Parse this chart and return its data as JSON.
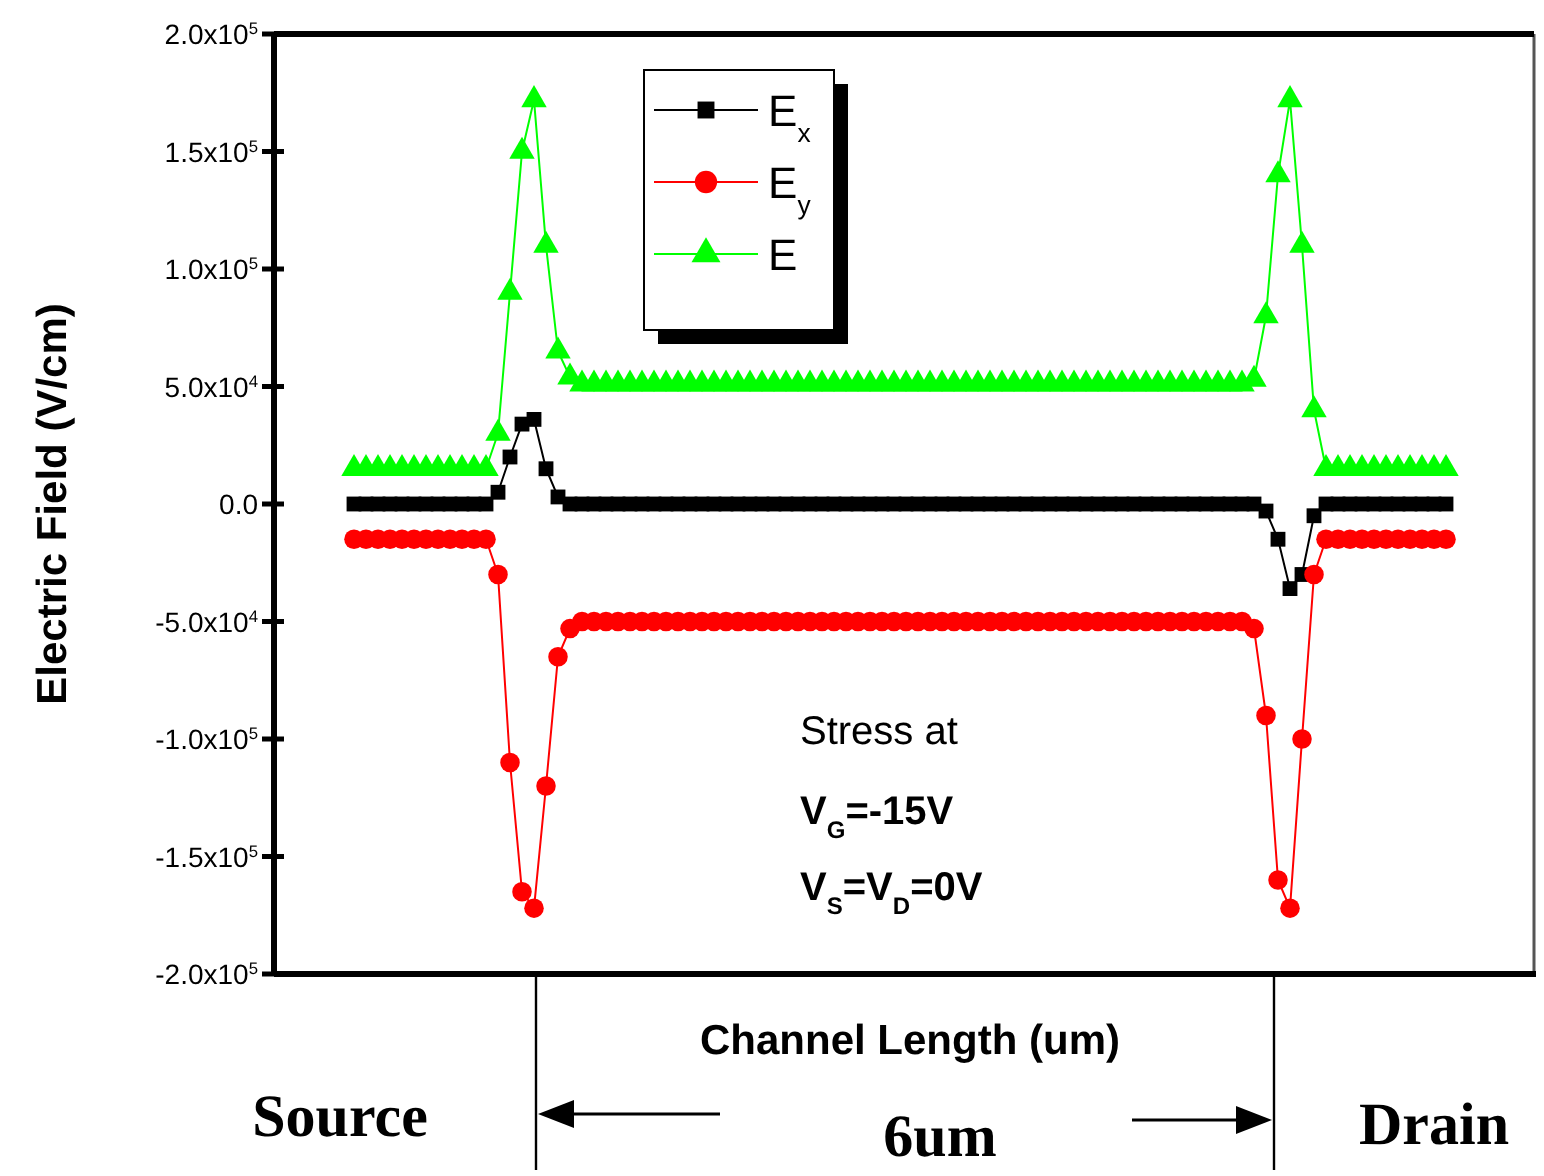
{
  "chart_data": {
    "type": "line",
    "xlabel": "Channel Length (um)",
    "ylabel": "Electric Field (V/cm)",
    "categories": [
      null,
      null,
      null,
      null,
      null,
      null,
      null,
      null,
      null,
      null,
      null,
      null,
      null,
      null,
      null,
      null,
      null,
      null,
      null,
      null,
      null,
      null,
      null,
      null,
      null,
      null,
      null,
      null,
      null,
      null,
      null,
      null,
      null,
      null,
      null,
      null,
      null,
      null,
      null,
      null,
      null,
      null,
      null,
      null,
      null,
      null,
      null,
      null,
      null,
      null,
      null,
      null,
      null,
      null,
      null,
      null,
      null,
      null,
      null,
      null,
      null,
      null,
      null,
      null,
      null,
      null,
      null,
      null,
      null,
      null,
      null,
      null,
      null,
      null,
      null,
      null,
      null,
      null,
      null,
      null,
      null,
      null,
      null,
      null,
      null,
      null,
      null,
      null,
      null,
      null,
      null,
      null
    ],
    "series": [
      {
        "name": "E$_{x}$",
        "color": "#000000",
        "marker": "square",
        "values": [
          0,
          0,
          0,
          0,
          0,
          0,
          0,
          0,
          0,
          0,
          0,
          0,
          5000,
          20000,
          34000,
          36000,
          15000,
          3000,
          0,
          0,
          0,
          0,
          0,
          0,
          0,
          0,
          0,
          0,
          0,
          0,
          0,
          0,
          0,
          0,
          0,
          0,
          0,
          0,
          0,
          0,
          0,
          0,
          0,
          0,
          0,
          0,
          0,
          0,
          0,
          0,
          0,
          0,
          0,
          0,
          0,
          0,
          0,
          0,
          0,
          0,
          0,
          0,
          0,
          0,
          0,
          0,
          0,
          0,
          0,
          0,
          0,
          0,
          0,
          0,
          0,
          0,
          -3000,
          -15000,
          -36000,
          -30000,
          -5000,
          0,
          0,
          0,
          0,
          0,
          0,
          0,
          0,
          0,
          0,
          0
        ]
      },
      {
        "name": "E$_{y}$",
        "color": "#ff0000",
        "marker": "circle",
        "values": [
          -15000,
          -15000,
          -15000,
          -15000,
          -15000,
          -15000,
          -15000,
          -15000,
          -15000,
          -15000,
          -15000,
          -15000,
          -30000,
          -110000,
          -165000,
          -172000,
          -120000,
          -65000,
          -53000,
          -50000,
          -50000,
          -50000,
          -50000,
          -50000,
          -50000,
          -50000,
          -50000,
          -50000,
          -50000,
          -50000,
          -50000,
          -50000,
          -50000,
          -50000,
          -50000,
          -50000,
          -50000,
          -50000,
          -50000,
          -50000,
          -50000,
          -50000,
          -50000,
          -50000,
          -50000,
          -50000,
          -50000,
          -50000,
          -50000,
          -50000,
          -50000,
          -50000,
          -50000,
          -50000,
          -50000,
          -50000,
          -50000,
          -50000,
          -50000,
          -50000,
          -50000,
          -50000,
          -50000,
          -50000,
          -50000,
          -50000,
          -50000,
          -50000,
          -50000,
          -50000,
          -50000,
          -50000,
          -50000,
          -50000,
          -50000,
          -53000,
          -90000,
          -160000,
          -172000,
          -100000,
          -30000,
          -15000,
          -15000,
          -15000,
          -15000,
          -15000,
          -15000,
          -15000,
          -15000,
          -15000,
          -15000,
          -15000
        ]
      },
      {
        "name": "E",
        "color": "#00ff00",
        "marker": "triangle",
        "values": [
          15000,
          15000,
          15000,
          15000,
          15000,
          15000,
          15000,
          15000,
          15000,
          15000,
          15000,
          15000,
          30000,
          90000,
          150000,
          172000,
          110000,
          65000,
          54000,
          51000,
          51000,
          51000,
          51000,
          51000,
          51000,
          51000,
          51000,
          51000,
          51000,
          51000,
          51000,
          51000,
          51000,
          51000,
          51000,
          51000,
          51000,
          51000,
          51000,
          51000,
          51000,
          51000,
          51000,
          51000,
          51000,
          51000,
          51000,
          51000,
          51000,
          51000,
          51000,
          51000,
          51000,
          51000,
          51000,
          51000,
          51000,
          51000,
          51000,
          51000,
          51000,
          51000,
          51000,
          51000,
          51000,
          51000,
          51000,
          51000,
          51000,
          51000,
          51000,
          51000,
          51000,
          51000,
          51000,
          53000,
          80000,
          140000,
          172000,
          110000,
          40000,
          15000,
          15000,
          15000,
          15000,
          15000,
          15000,
          15000,
          15000,
          15000,
          15000,
          15000
        ]
      }
    ],
    "ylim": [
      -200000,
      200000
    ],
    "yticks": [
      {
        "value": -200000,
        "label": "-2.0x10$^{5}$"
      },
      {
        "value": -150000,
        "label": "-1.5x10$^{5}$"
      },
      {
        "value": -100000,
        "label": "-1.0x10$^{5}$"
      },
      {
        "value": -50000,
        "label": "-5.0x10$^{4}$"
      },
      {
        "value": 0,
        "label": "0.0"
      },
      {
        "value": 50000,
        "label": "5.0x10$^{4}$"
      },
      {
        "value": 100000,
        "label": "1.0x10$^{5}$"
      },
      {
        "value": 150000,
        "label": "1.5x10$^{5}$"
      },
      {
        "value": 200000,
        "label": "2.0x10$^{5}$"
      }
    ],
    "tick_labels": "y",
    "legend": "top",
    "grid": false,
    "line_style": "solid",
    "annotations": [
      "Stress at",
      "V$_{G}$=-15V",
      "V$_{S}$=V$_{D}$=0V",
      "Source",
      "6um",
      "Drain"
    ]
  }
}
